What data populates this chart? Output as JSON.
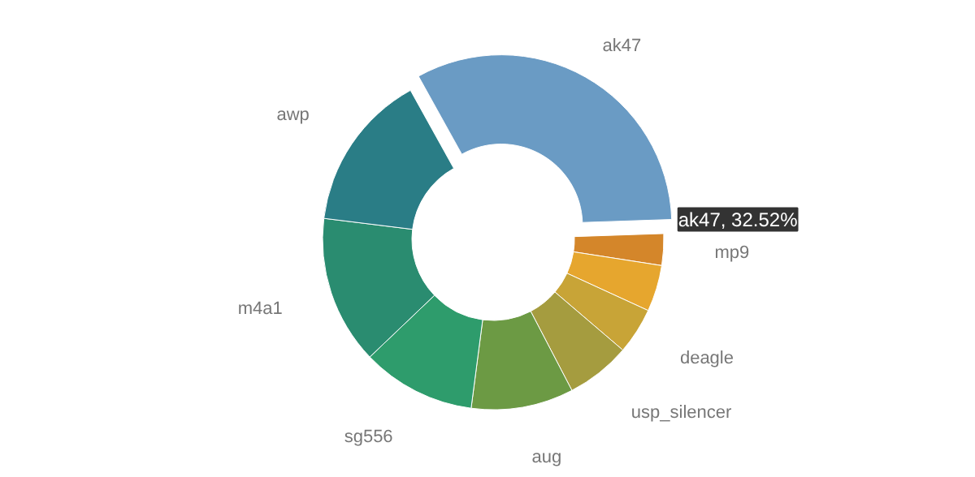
{
  "chart_data": {
    "type": "donut",
    "categories": [
      "ak47",
      "mp9",
      null,
      "deagle",
      "usp_silencer",
      "aug",
      "sg556",
      "m4a1",
      "awp"
    ],
    "values": [
      32.52,
      3.0,
      4.4,
      4.4,
      6.1,
      9.7,
      10.8,
      14.1,
      14.98
    ],
    "colors": [
      "#6a9bc4",
      "#d4862a",
      "#e6a62e",
      "#c8a437",
      "#a59c3f",
      "#6c9a44",
      "#2e9c6c",
      "#2a8c70",
      "#2a7d86"
    ],
    "annotations": [
      {
        "text": "ak47, 32.52%",
        "x": "ak47"
      }
    ]
  }
}
